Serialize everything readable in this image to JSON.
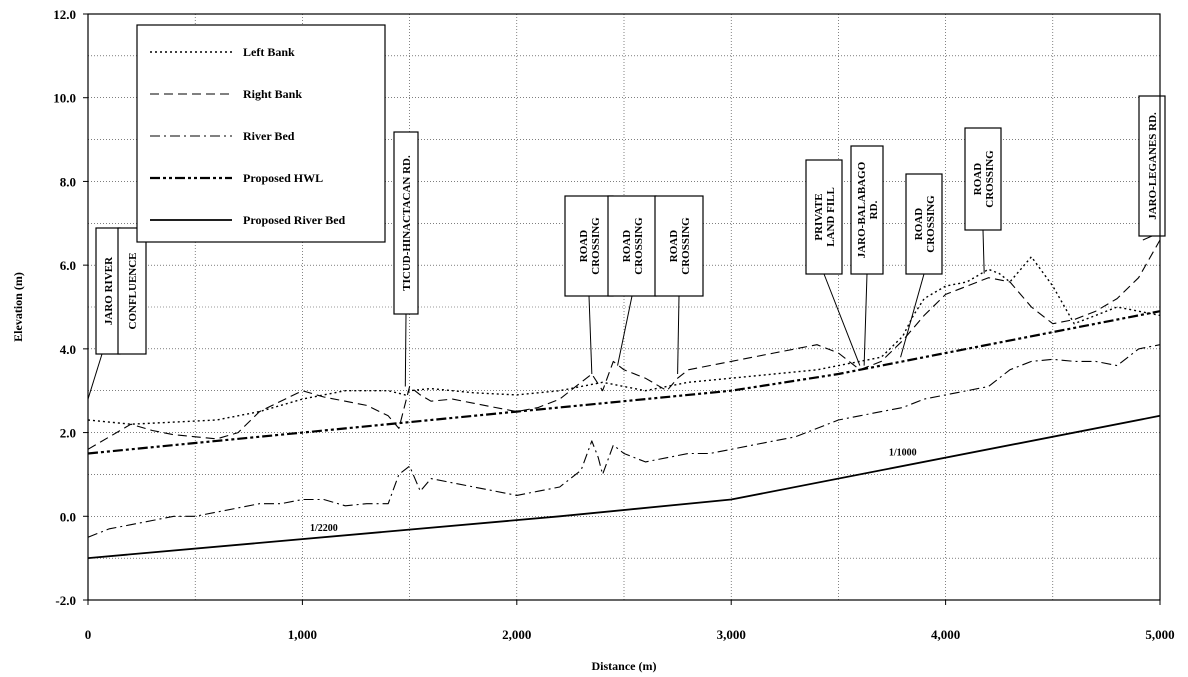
{
  "chart_data": {
    "type": "line",
    "xlabel": "Distance (m)",
    "ylabel": "Elevation (m)",
    "xlim": [
      0,
      5000
    ],
    "ylim": [
      -2.0,
      12.0
    ],
    "x_ticks": [
      0,
      1000,
      2000,
      3000,
      4000,
      5000
    ],
    "x_tick_labels": [
      "0",
      "1,000",
      "2,000",
      "3,000",
      "4,000",
      "5,000"
    ],
    "y_ticks": [
      -2,
      0,
      2,
      4,
      6,
      8,
      10,
      12
    ],
    "y_tick_labels": [
      "-2.0",
      "0.0",
      "2.0",
      "4.0",
      "6.0",
      "8.0",
      "10.0",
      "12.0"
    ],
    "grid": true,
    "legend_position": "top-left",
    "series": [
      {
        "name": "Left Bank",
        "style": "dotted",
        "x": [
          0,
          200,
          400,
          600,
          800,
          1000,
          1200,
          1400,
          1480,
          1500,
          1600,
          1800,
          2000,
          2200,
          2300,
          2400,
          2500,
          2600,
          2800,
          3000,
          3200,
          3400,
          3500,
          3600,
          3700,
          3800,
          3850,
          3900,
          4000,
          4100,
          4200,
          4250,
          4300,
          4400,
          4500,
          4600,
          4700,
          4800,
          4900,
          5000
        ],
        "y": [
          2.3,
          2.2,
          2.25,
          2.3,
          2.5,
          2.8,
          3.0,
          3.0,
          2.9,
          3.0,
          3.05,
          2.95,
          2.9,
          3.0,
          3.1,
          3.2,
          3.1,
          3.0,
          3.2,
          3.3,
          3.4,
          3.5,
          3.6,
          3.7,
          3.8,
          4.3,
          4.8,
          5.2,
          5.5,
          5.6,
          5.9,
          5.8,
          5.6,
          6.2,
          5.5,
          4.6,
          4.8,
          5.0,
          4.9,
          4.8
        ]
      },
      {
        "name": "Right Bank",
        "style": "dashed",
        "x": [
          0,
          100,
          200,
          300,
          400,
          500,
          600,
          700,
          800,
          1000,
          1100,
          1200,
          1300,
          1400,
          1450,
          1500,
          1550,
          1600,
          1700,
          1800,
          1900,
          2000,
          2100,
          2200,
          2300,
          2350,
          2400,
          2450,
          2500,
          2600,
          2700,
          2750,
          2800,
          3000,
          3200,
          3400,
          3500,
          3600,
          3700,
          3800,
          3900,
          4000,
          4100,
          4200,
          4300,
          4400,
          4500,
          4600,
          4700,
          4800,
          4900,
          5000
        ],
        "y": [
          1.6,
          1.9,
          2.2,
          2.05,
          1.95,
          1.9,
          1.85,
          2.0,
          2.5,
          3.0,
          2.85,
          2.75,
          2.65,
          2.4,
          2.1,
          3.1,
          2.9,
          2.75,
          2.8,
          2.7,
          2.6,
          2.5,
          2.6,
          2.8,
          3.2,
          3.4,
          3.0,
          3.7,
          3.5,
          3.3,
          3.0,
          3.3,
          3.5,
          3.7,
          3.9,
          4.1,
          3.9,
          3.5,
          3.7,
          4.2,
          4.8,
          5.3,
          5.5,
          5.7,
          5.6,
          5.0,
          4.6,
          4.7,
          4.9,
          5.2,
          5.7,
          6.6
        ]
      },
      {
        "name": "River Bed",
        "style": "dash-dot",
        "x": [
          0,
          100,
          200,
          300,
          400,
          500,
          600,
          700,
          800,
          900,
          1000,
          1100,
          1200,
          1300,
          1400,
          1450,
          1500,
          1550,
          1600,
          1700,
          1800,
          1900,
          2000,
          2100,
          2200,
          2300,
          2350,
          2380,
          2400,
          2450,
          2500,
          2600,
          2700,
          2800,
          2900,
          3000,
          3100,
          3200,
          3300,
          3400,
          3500,
          3600,
          3700,
          3800,
          3900,
          4000,
          4100,
          4200,
          4300,
          4400,
          4500,
          4600,
          4700,
          4800,
          4900,
          5000
        ],
        "y": [
          -0.5,
          -0.3,
          -0.2,
          -0.1,
          0.0,
          0.0,
          0.1,
          0.2,
          0.3,
          0.3,
          0.4,
          0.4,
          0.25,
          0.3,
          0.3,
          1.0,
          1.2,
          0.6,
          0.9,
          0.8,
          0.7,
          0.6,
          0.5,
          0.6,
          0.7,
          1.1,
          1.8,
          1.4,
          1.0,
          1.7,
          1.5,
          1.3,
          1.4,
          1.5,
          1.5,
          1.6,
          1.7,
          1.8,
          1.9,
          2.1,
          2.3,
          2.4,
          2.5,
          2.6,
          2.8,
          2.9,
          3.0,
          3.1,
          3.5,
          3.7,
          3.75,
          3.7,
          3.7,
          3.6,
          4.0,
          4.1
        ]
      },
      {
        "name": "Proposed HWL",
        "style": "dash-dot-dot",
        "x": [
          0,
          500,
          1000,
          1500,
          2000,
          2500,
          3000,
          3500,
          4000,
          4500,
          5000
        ],
        "y": [
          1.5,
          1.75,
          2.0,
          2.25,
          2.5,
          2.75,
          3.0,
          3.4,
          3.9,
          4.4,
          4.9
        ]
      },
      {
        "name": "Proposed River Bed",
        "style": "solid",
        "x": [
          0,
          2200,
          3000,
          5000
        ],
        "y": [
          -1.0,
          0.0,
          0.4,
          2.4
        ]
      }
    ],
    "slope_labels": [
      {
        "text": "1/2200",
        "x": 1100,
        "y": -0.35
      },
      {
        "text": "1/1000",
        "x": 3800,
        "y": 1.45
      }
    ],
    "annotations": [
      {
        "lines": [
          "JARO RIVER",
          "CONFLUENCE"
        ],
        "point_x": 0,
        "point_y": 2.8
      },
      {
        "lines": [
          "TICUD-HINACTACAN RD."
        ],
        "point_x": 1480,
        "point_y": 3.1
      },
      {
        "lines": [
          "ROAD",
          "CROSSING"
        ],
        "point_x": 2350,
        "point_y": 3.4
      },
      {
        "lines": [
          "ROAD",
          "CROSSING"
        ],
        "point_x": 2470,
        "point_y": 3.6
      },
      {
        "lines": [
          "ROAD",
          "CROSSING"
        ],
        "point_x": 2750,
        "point_y": 3.4
      },
      {
        "lines": [
          "PRIVATE",
          "LAND FILL"
        ],
        "point_x": 3600,
        "point_y": 3.6
      },
      {
        "lines": [
          "JARO-BALABAGO",
          "RD."
        ],
        "point_x": 3620,
        "point_y": 3.6
      },
      {
        "lines": [
          "ROAD",
          "CROSSING"
        ],
        "point_x": 3790,
        "point_y": 3.8
      },
      {
        "lines": [
          "ROAD",
          "CROSSING"
        ],
        "point_x": 4180,
        "point_y": 5.8
      },
      {
        "lines": [
          "JARO-LEGANES RD."
        ],
        "point_x": 4920,
        "point_y": 6.6
      }
    ]
  }
}
